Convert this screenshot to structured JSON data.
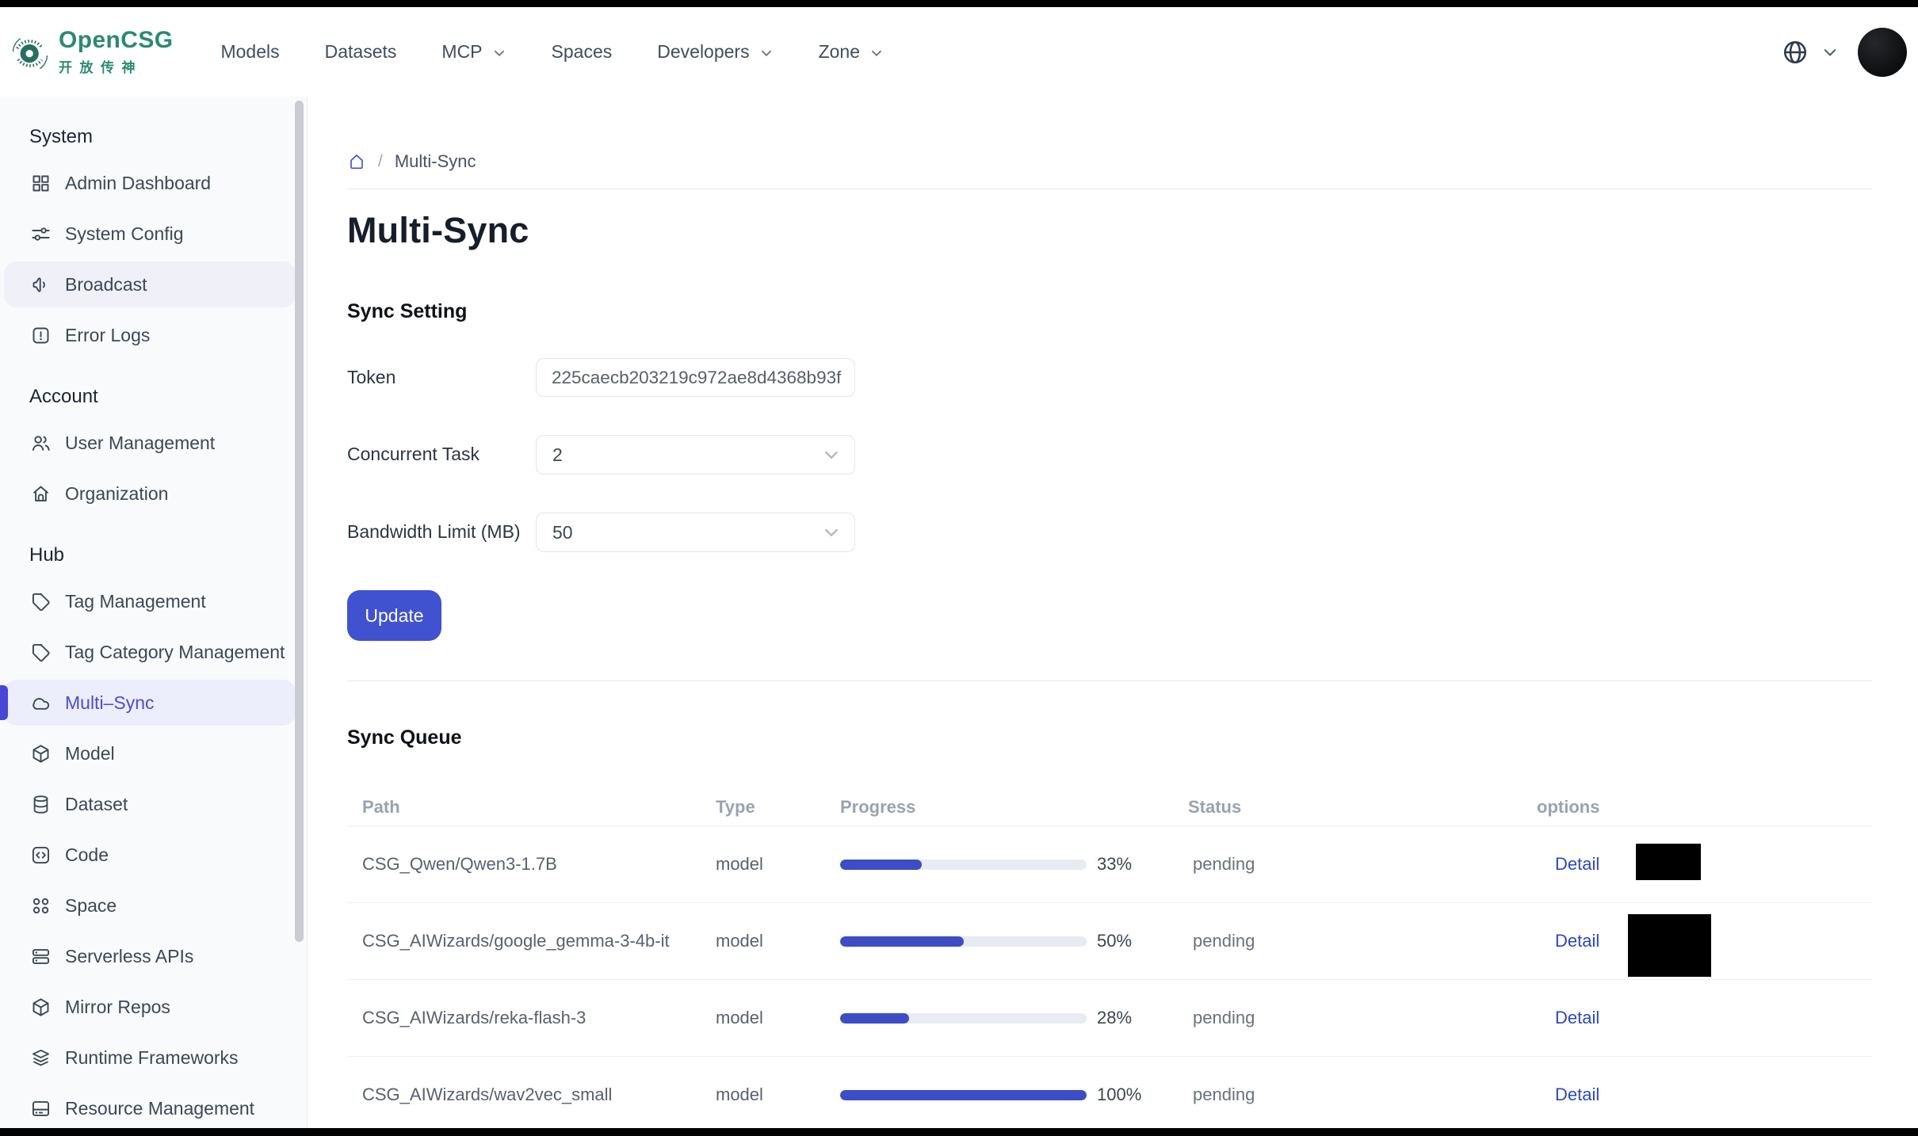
{
  "header": {
    "logo": {
      "name": "OpenCSG",
      "subtitle": "开放传神",
      "mark_icon": "opencsg-logo-icon"
    },
    "nav": [
      {
        "label": "Models",
        "dropdown": false
      },
      {
        "label": "Datasets",
        "dropdown": false
      },
      {
        "label": "MCP",
        "dropdown": true
      },
      {
        "label": "Spaces",
        "dropdown": false
      },
      {
        "label": "Developers",
        "dropdown": true
      },
      {
        "label": "Zone",
        "dropdown": true
      }
    ],
    "right": {
      "language_icon": "globe-icon",
      "language_chevron": "chevron-down-icon",
      "avatar": "user-avatar"
    }
  },
  "sidebar": {
    "sections": [
      {
        "title": "System",
        "items": [
          {
            "label": "Admin Dashboard",
            "icon": "dashboard-grid-icon"
          },
          {
            "label": "System Config",
            "icon": "sliders-icon"
          },
          {
            "label": "Broadcast",
            "icon": "megaphone-icon",
            "hover": true
          },
          {
            "label": "Error Logs",
            "icon": "alert-square-icon"
          }
        ]
      },
      {
        "title": "Account",
        "items": [
          {
            "label": "User Management",
            "icon": "users-icon"
          },
          {
            "label": "Organization",
            "icon": "home-icon"
          }
        ]
      },
      {
        "title": "Hub",
        "items": [
          {
            "label": "Tag Management",
            "icon": "tag-icon"
          },
          {
            "label": "Tag Category Management",
            "icon": "tag-icon"
          },
          {
            "label": "Multi–Sync",
            "icon": "cloud-icon",
            "active": true
          },
          {
            "label": "Model",
            "icon": "package-icon"
          },
          {
            "label": "Dataset",
            "icon": "database-icon"
          },
          {
            "label": "Code",
            "icon": "code-icon"
          },
          {
            "label": "Space",
            "icon": "space-grid-icon"
          },
          {
            "label": "Serverless APIs",
            "icon": "server-icon"
          },
          {
            "label": "Mirror Repos",
            "icon": "package-icon"
          },
          {
            "label": "Runtime Frameworks",
            "icon": "layers-icon"
          },
          {
            "label": "Resource Management",
            "icon": "drive-icon"
          }
        ]
      }
    ]
  },
  "breadcrumb": {
    "home_icon": "breadcrumb-home-icon",
    "separator": "/",
    "current": "Multi-Sync"
  },
  "page": {
    "title": "Multi-Sync"
  },
  "sync_setting": {
    "heading": "Sync Setting",
    "fields": [
      {
        "label": "Token",
        "type": "input",
        "value": "225caecb203219c972ae8d4368b93f"
      },
      {
        "label": "Concurrent Task",
        "type": "select",
        "value": "2"
      },
      {
        "label": "Bandwidth Limit (MB)",
        "type": "select",
        "value": "50"
      }
    ],
    "update_button": "Update"
  },
  "sync_queue": {
    "heading": "Sync Queue",
    "columns": [
      "Path",
      "Type",
      "Progress",
      "Status",
      "options"
    ],
    "rows": [
      {
        "path": "CSG_Qwen/Qwen3-1.7B",
        "type": "model",
        "progress": 33,
        "progress_label": "33%",
        "status": "pending",
        "action": "Detail",
        "redacted": true
      },
      {
        "path": "CSG_AIWizards/google_gemma-3-4b-it",
        "type": "model",
        "progress": 50,
        "progress_label": "50%",
        "status": "pending",
        "action": "Detail",
        "redacted": true
      },
      {
        "path": "CSG_AIWizards/reka-flash-3",
        "type": "model",
        "progress": 28,
        "progress_label": "28%",
        "status": "pending",
        "action": "Detail",
        "redacted": false
      },
      {
        "path": "CSG_AIWizards/wav2vec_small",
        "type": "model",
        "progress": 100,
        "progress_label": "100%",
        "status": "pending",
        "action": "Detail",
        "redacted": false
      }
    ]
  },
  "colors": {
    "brand_teal": "#2b8a72",
    "button_accent": "#4052cf",
    "progress_fill": "#3c4dc6",
    "link_blue": "#2b47c5",
    "active_item_text": "#4b4cd8",
    "redaction": "#000000"
  }
}
